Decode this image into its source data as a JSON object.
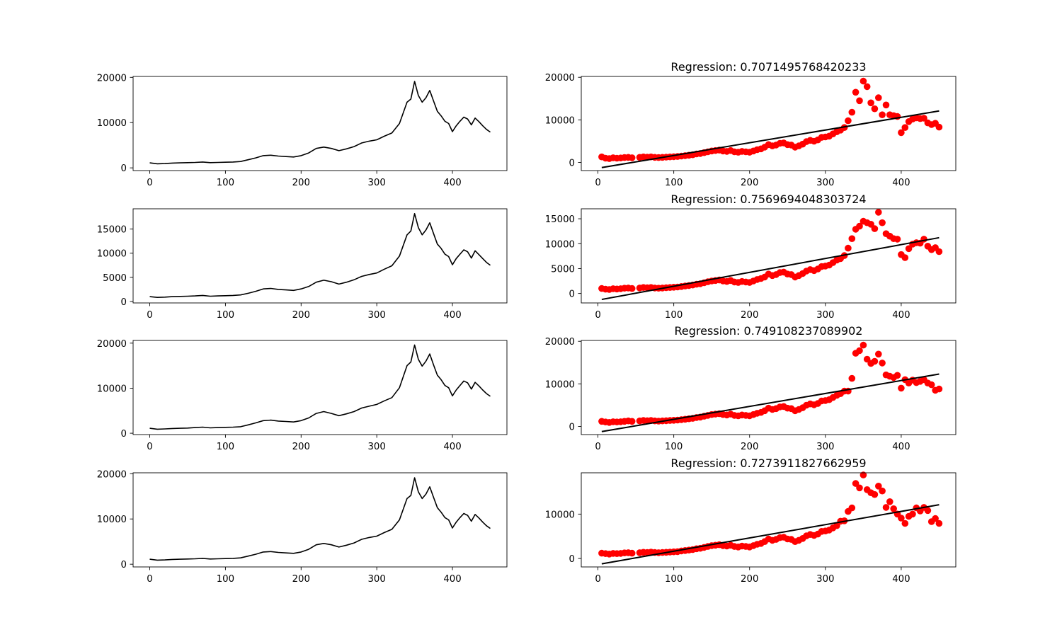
{
  "chart_data": [
    {
      "type": "line",
      "color": "#000000",
      "xlim": [
        -22,
        472
      ],
      "ylim": [
        -600,
        20200
      ],
      "xticks": [
        0,
        100,
        200,
        300,
        400
      ],
      "yticks": [
        0,
        10000,
        20000
      ],
      "title": "",
      "xlabel": "",
      "ylabel": "",
      "x": [
        0,
        10,
        20,
        30,
        40,
        50,
        60,
        70,
        80,
        90,
        100,
        110,
        120,
        130,
        140,
        150,
        160,
        170,
        180,
        190,
        200,
        210,
        220,
        230,
        240,
        250,
        260,
        270,
        280,
        290,
        300,
        310,
        320,
        330,
        340,
        345,
        350,
        355,
        360,
        365,
        370,
        375,
        380,
        385,
        390,
        395,
        400,
        405,
        410,
        415,
        420,
        425,
        430,
        435,
        440,
        445,
        450
      ],
      "y": [
        1100,
        900,
        950,
        1050,
        1100,
        1150,
        1200,
        1300,
        1150,
        1200,
        1250,
        1300,
        1400,
        1800,
        2200,
        2700,
        2800,
        2600,
        2500,
        2400,
        2700,
        3300,
        4300,
        4600,
        4300,
        3800,
        4200,
        4700,
        5500,
        5900,
        6200,
        7000,
        7700,
        9800,
        14500,
        15200,
        19100,
        16000,
        14500,
        15500,
        17100,
        14800,
        12500,
        11500,
        10300,
        9800,
        8000,
        9300,
        10300,
        11200,
        10800,
        9500,
        11000,
        10200,
        9300,
        8500,
        7900
      ]
    },
    {
      "type": "scatter",
      "color": "#ff0000",
      "title": "Regression: 0.7071495768420233",
      "xlim": [
        -22,
        472
      ],
      "ylim": [
        -1900,
        20200
      ],
      "xticks": [
        0,
        100,
        200,
        300,
        400
      ],
      "yticks": [
        0,
        10000,
        20000
      ],
      "xlabel": "",
      "ylabel": "",
      "x": [
        5,
        10,
        15,
        20,
        25,
        30,
        35,
        40,
        45,
        55,
        60,
        65,
        70,
        75,
        80,
        85,
        90,
        95,
        100,
        105,
        110,
        115,
        120,
        125,
        130,
        135,
        140,
        145,
        150,
        155,
        160,
        165,
        170,
        175,
        180,
        185,
        190,
        195,
        200,
        205,
        210,
        215,
        220,
        225,
        230,
        235,
        240,
        245,
        250,
        255,
        260,
        265,
        270,
        275,
        280,
        285,
        290,
        295,
        300,
        305,
        310,
        315,
        320,
        325,
        330,
        335,
        340,
        345,
        350,
        355,
        360,
        365,
        370,
        375,
        380,
        385,
        390,
        395,
        400,
        405,
        410,
        415,
        420,
        425,
        430,
        435,
        440,
        445,
        450
      ],
      "y": [
        1300,
        1000,
        900,
        1100,
        1000,
        1050,
        1150,
        1200,
        1100,
        1200,
        1300,
        1250,
        1300,
        1200,
        1150,
        1200,
        1250,
        1300,
        1350,
        1400,
        1500,
        1600,
        1700,
        1800,
        2000,
        2100,
        2300,
        2500,
        2700,
        2800,
        2900,
        2700,
        2600,
        2800,
        2500,
        2400,
        2600,
        2500,
        2400,
        2700,
        3000,
        3200,
        3600,
        4200,
        3900,
        4100,
        4500,
        4600,
        4200,
        4100,
        3600,
        3900,
        4300,
        4900,
        5200,
        5000,
        5300,
        5900,
        6000,
        6200,
        6700,
        7200,
        7600,
        8200,
        9800,
        11800,
        16500,
        14500,
        19100,
        17800,
        14000,
        12600,
        15200,
        11200,
        13500,
        11200,
        11000,
        10800,
        7000,
        8200,
        9600,
        10200,
        10500,
        10300,
        10400,
        9300,
        8900,
        9200,
        8300
      ],
      "fit": {
        "x": [
          5,
          450
        ],
        "y": [
          -1200,
          12100
        ],
        "color": "#000000"
      }
    },
    {
      "type": "line",
      "color": "#000000",
      "xlim": [
        -22,
        472
      ],
      "ylim": [
        -300,
        19200
      ],
      "xticks": [
        0,
        100,
        200,
        300,
        400
      ],
      "yticks": [
        0,
        5000,
        10000,
        15000
      ],
      "title": "",
      "xlabel": "",
      "ylabel": "",
      "x": [
        0,
        10,
        20,
        30,
        40,
        50,
        60,
        70,
        80,
        90,
        100,
        110,
        120,
        130,
        140,
        150,
        160,
        170,
        180,
        190,
        200,
        210,
        220,
        230,
        240,
        250,
        260,
        270,
        280,
        290,
        300,
        310,
        320,
        330,
        340,
        345,
        350,
        355,
        360,
        365,
        370,
        375,
        380,
        385,
        390,
        395,
        400,
        405,
        410,
        415,
        420,
        425,
        430,
        435,
        440,
        445,
        450
      ],
      "y": [
        1000,
        850,
        900,
        1000,
        1050,
        1100,
        1150,
        1250,
        1100,
        1150,
        1200,
        1250,
        1350,
        1700,
        2100,
        2600,
        2700,
        2500,
        2400,
        2300,
        2600,
        3100,
        4000,
        4400,
        4100,
        3600,
        4000,
        4500,
        5200,
        5600,
        5900,
        6700,
        7400,
        9400,
        13800,
        14600,
        18200,
        15300,
        13800,
        14800,
        16300,
        14100,
        11900,
        11000,
        9800,
        9300,
        7600,
        8900,
        9800,
        10700,
        10300,
        9000,
        10500,
        9700,
        8900,
        8100,
        7500
      ]
    },
    {
      "type": "scatter",
      "color": "#ff0000",
      "title": "Regression: 0.7569694048303724",
      "xlim": [
        -22,
        472
      ],
      "ylim": [
        -1900,
        17000
      ],
      "xticks": [
        0,
        100,
        200,
        300,
        400
      ],
      "yticks": [
        0,
        5000,
        10000,
        15000
      ],
      "xlabel": "",
      "ylabel": "",
      "x": [
        5,
        10,
        15,
        20,
        25,
        30,
        35,
        40,
        45,
        55,
        60,
        65,
        70,
        75,
        80,
        85,
        90,
        95,
        100,
        105,
        110,
        115,
        120,
        125,
        130,
        135,
        140,
        145,
        150,
        155,
        160,
        165,
        170,
        175,
        180,
        185,
        190,
        195,
        200,
        205,
        210,
        215,
        220,
        225,
        230,
        235,
        240,
        245,
        250,
        255,
        260,
        265,
        270,
        275,
        280,
        285,
        290,
        295,
        300,
        305,
        310,
        315,
        320,
        325,
        330,
        335,
        340,
        345,
        350,
        355,
        360,
        365,
        370,
        375,
        380,
        385,
        390,
        395,
        400,
        405,
        410,
        415,
        420,
        425,
        430,
        435,
        440,
        445,
        450
      ],
      "y": [
        1000,
        850,
        800,
        950,
        900,
        950,
        1050,
        1100,
        1000,
        1100,
        1200,
        1150,
        1200,
        1100,
        1050,
        1100,
        1150,
        1200,
        1250,
        1300,
        1400,
        1500,
        1600,
        1700,
        1850,
        1950,
        2150,
        2350,
        2500,
        2600,
        2700,
        2500,
        2400,
        2600,
        2300,
        2200,
        2400,
        2300,
        2200,
        2500,
        2800,
        3000,
        3300,
        3900,
        3600,
        3800,
        4200,
        4300,
        3900,
        3800,
        3300,
        3600,
        4000,
        4500,
        4800,
        4600,
        4900,
        5400,
        5500,
        5700,
        6200,
        6700,
        7000,
        7600,
        9100,
        11000,
        12900,
        13500,
        14500,
        14200,
        13900,
        13000,
        16300,
        14200,
        12000,
        11500,
        11000,
        10900,
        7800,
        7200,
        9000,
        9900,
        10200,
        10100,
        10900,
        9500,
        8800,
        9200,
        8400
      ],
      "fit": {
        "x": [
          5,
          450
        ],
        "y": [
          -1200,
          11200
        ],
        "color": "#000000"
      }
    },
    {
      "type": "line",
      "color": "#000000",
      "xlim": [
        -22,
        472
      ],
      "ylim": [
        -300,
        20600
      ],
      "xticks": [
        0,
        100,
        200,
        300,
        400
      ],
      "yticks": [
        0,
        10000,
        20000
      ],
      "title": "",
      "xlabel": "",
      "ylabel": "",
      "x": [
        0,
        10,
        20,
        30,
        40,
        50,
        60,
        70,
        80,
        90,
        100,
        110,
        120,
        130,
        140,
        150,
        160,
        170,
        180,
        190,
        200,
        210,
        220,
        230,
        240,
        250,
        260,
        270,
        280,
        290,
        300,
        310,
        320,
        330,
        340,
        345,
        350,
        355,
        360,
        365,
        370,
        375,
        380,
        385,
        390,
        395,
        400,
        405,
        410,
        415,
        420,
        425,
        430,
        435,
        440,
        445,
        450
      ],
      "y": [
        1100,
        900,
        950,
        1050,
        1100,
        1150,
        1250,
        1350,
        1200,
        1250,
        1300,
        1350,
        1450,
        1850,
        2300,
        2800,
        2900,
        2700,
        2600,
        2500,
        2800,
        3400,
        4400,
        4800,
        4400,
        3900,
        4300,
        4800,
        5600,
        6000,
        6400,
        7200,
        7900,
        10100,
        15000,
        15800,
        19600,
        16400,
        14900,
        16000,
        17600,
        15200,
        12900,
        11900,
        10600,
        10100,
        8300,
        9600,
        10600,
        11600,
        11200,
        9800,
        11300,
        10500,
        9600,
        8800,
        8200
      ]
    },
    {
      "type": "scatter",
      "color": "#ff0000",
      "title": "Regression: 0.749108237089902",
      "xlim": [
        -22,
        472
      ],
      "ylim": [
        -1900,
        20200
      ],
      "xticks": [
        0,
        100,
        200,
        300,
        400
      ],
      "yticks": [
        0,
        10000,
        20000
      ],
      "xlabel": "",
      "ylabel": "",
      "x": [
        5,
        10,
        15,
        20,
        25,
        30,
        35,
        40,
        45,
        55,
        60,
        65,
        70,
        75,
        80,
        85,
        90,
        95,
        100,
        105,
        110,
        115,
        120,
        125,
        130,
        135,
        140,
        145,
        150,
        155,
        160,
        165,
        170,
        175,
        180,
        185,
        190,
        195,
        200,
        205,
        210,
        215,
        220,
        225,
        230,
        235,
        240,
        245,
        250,
        255,
        260,
        265,
        270,
        275,
        280,
        285,
        290,
        295,
        300,
        305,
        310,
        315,
        320,
        325,
        330,
        335,
        340,
        345,
        350,
        355,
        360,
        365,
        370,
        375,
        380,
        385,
        390,
        395,
        400,
        405,
        410,
        415,
        420,
        425,
        430,
        435,
        440,
        445,
        450
      ],
      "y": [
        1200,
        1050,
        950,
        1100,
        1050,
        1100,
        1200,
        1300,
        1200,
        1300,
        1400,
        1350,
        1400,
        1300,
        1250,
        1300,
        1350,
        1400,
        1450,
        1500,
        1600,
        1700,
        1800,
        1900,
        2100,
        2200,
        2400,
        2600,
        2800,
        2900,
        3000,
        2800,
        2700,
        2900,
        2600,
        2500,
        2700,
        2600,
        2500,
        2800,
        3100,
        3300,
        3700,
        4300,
        4000,
        4200,
        4600,
        4700,
        4300,
        4200,
        3700,
        4000,
        4400,
        5000,
        5300,
        5100,
        5400,
        6000,
        6100,
        6300,
        6800,
        7300,
        7700,
        8300,
        8300,
        11300,
        17200,
        17800,
        19100,
        15800,
        14800,
        15300,
        17000,
        14900,
        12100,
        11800,
        11500,
        12000,
        9000,
        11000,
        10200,
        10900,
        10300,
        10600,
        11000,
        10200,
        9800,
        8500,
        8800
      ],
      "fit": {
        "x": [
          5,
          450
        ],
        "y": [
          -1200,
          12300
        ],
        "color": "#000000"
      }
    },
    {
      "type": "line",
      "color": "#000000",
      "xlim": [
        -22,
        472
      ],
      "ylim": [
        -600,
        20200
      ],
      "xticks": [
        0,
        100,
        200,
        300,
        400
      ],
      "yticks": [
        0,
        10000,
        20000
      ],
      "title": "",
      "xlabel": "",
      "ylabel": "",
      "x": [
        0,
        10,
        20,
        30,
        40,
        50,
        60,
        70,
        80,
        90,
        100,
        110,
        120,
        130,
        140,
        150,
        160,
        170,
        180,
        190,
        200,
        210,
        220,
        230,
        240,
        250,
        260,
        270,
        280,
        290,
        300,
        310,
        320,
        330,
        340,
        345,
        350,
        355,
        360,
        365,
        370,
        375,
        380,
        385,
        390,
        395,
        400,
        405,
        410,
        415,
        420,
        425,
        430,
        435,
        440,
        445,
        450
      ],
      "y": [
        1100,
        900,
        950,
        1050,
        1100,
        1150,
        1200,
        1300,
        1150,
        1200,
        1250,
        1300,
        1400,
        1800,
        2200,
        2700,
        2800,
        2600,
        2500,
        2400,
        2700,
        3300,
        4300,
        4600,
        4300,
        3800,
        4200,
        4700,
        5500,
        5900,
        6200,
        7000,
        7700,
        9800,
        14500,
        15200,
        19100,
        16000,
        14500,
        15500,
        17100,
        14800,
        12500,
        11500,
        10300,
        9800,
        8000,
        9300,
        10300,
        11200,
        10800,
        9500,
        11000,
        10200,
        9300,
        8500,
        7900
      ]
    },
    {
      "type": "scatter",
      "color": "#ff0000",
      "title": "Regression: 0.7273911827662959",
      "xlim": [
        -22,
        472
      ],
      "ylim": [
        -1900,
        19300
      ],
      "xticks": [
        0,
        100,
        200,
        300,
        400
      ],
      "yticks": [
        0,
        10000
      ],
      "xlabel": "",
      "ylabel": "",
      "x": [
        5,
        10,
        15,
        20,
        25,
        30,
        35,
        40,
        45,
        55,
        60,
        65,
        70,
        75,
        80,
        85,
        90,
        95,
        100,
        105,
        110,
        115,
        120,
        125,
        130,
        135,
        140,
        145,
        150,
        155,
        160,
        165,
        170,
        175,
        180,
        185,
        190,
        195,
        200,
        205,
        210,
        215,
        220,
        225,
        230,
        235,
        240,
        245,
        250,
        255,
        260,
        265,
        270,
        275,
        280,
        285,
        290,
        295,
        300,
        305,
        310,
        315,
        320,
        325,
        330,
        335,
        340,
        345,
        350,
        355,
        360,
        365,
        370,
        375,
        380,
        385,
        390,
        395,
        400,
        405,
        410,
        415,
        420,
        425,
        430,
        435,
        440,
        445,
        450
      ],
      "y": [
        1200,
        1100,
        1000,
        1150,
        1100,
        1150,
        1250,
        1300,
        1200,
        1300,
        1400,
        1350,
        1450,
        1350,
        1300,
        1350,
        1400,
        1450,
        1500,
        1550,
        1700,
        1800,
        1900,
        2000,
        2200,
        2300,
        2500,
        2700,
        2900,
        3000,
        3100,
        2900,
        2800,
        3000,
        2700,
        2600,
        2800,
        2700,
        2600,
        2900,
        3200,
        3400,
        3800,
        4400,
        4100,
        4300,
        4700,
        4800,
        4400,
        4300,
        3800,
        4100,
        4500,
        5100,
        5400,
        5200,
        5500,
        6100,
        6200,
        6400,
        6900,
        7400,
        8400,
        8500,
        10600,
        11400,
        16900,
        15900,
        18800,
        15500,
        14800,
        14400,
        16300,
        15200,
        11500,
        12800,
        11200,
        10000,
        9100,
        7900,
        9500,
        10000,
        11400,
        10700,
        11500,
        10800,
        8300,
        9000,
        7900
      ],
      "fit": {
        "x": [
          5,
          450
        ],
        "y": [
          -1200,
          12100
        ],
        "color": "#000000"
      }
    }
  ]
}
